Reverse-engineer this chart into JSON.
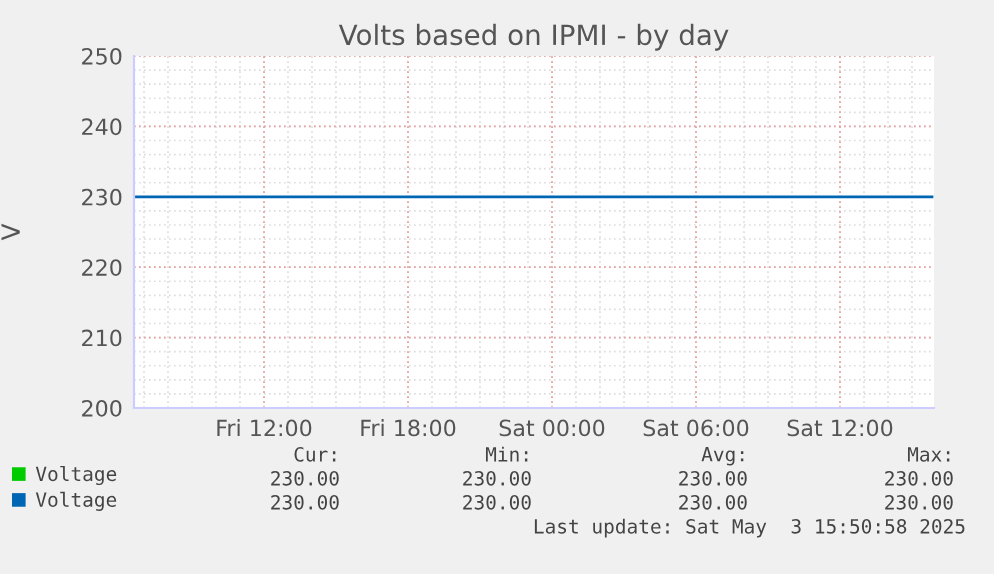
{
  "chart_data": {
    "type": "line",
    "title": "Volts based on IPMI - by day",
    "ylabel": "V",
    "x": [
      "2025-05-02T06:35",
      "2025-05-03T15:50"
    ],
    "series": [
      {
        "name": "Voltage",
        "color": "#00cc00",
        "values": [
          null,
          null
        ]
      },
      {
        "name": "Voltage",
        "color": "#0066b3",
        "values": [
          230,
          230
        ]
      }
    ],
    "xlim": [
      "2025-05-02T06:35",
      "2025-05-03T15:55"
    ],
    "xticks": [
      {
        "value": "2025-05-02T12:00",
        "label": "Fri 12:00"
      },
      {
        "value": "2025-05-02T18:00",
        "label": "Fri 18:00"
      },
      {
        "value": "2025-05-03T00:00",
        "label": "Sat 00:00"
      },
      {
        "value": "2025-05-03T06:00",
        "label": "Sat 06:00"
      },
      {
        "value": "2025-05-03T12:00",
        "label": "Sat 12:00"
      }
    ],
    "ylim": [
      200,
      250
    ],
    "yticks": [
      200,
      210,
      220,
      230,
      240,
      250
    ],
    "grid": true,
    "legend": "bottom left",
    "annotations": [
      "Cur:",
      "Min:",
      "Avg:",
      "Max:",
      "230.00",
      "230.00",
      "230.00",
      "230.00",
      "230.00",
      "230.00",
      "230.00",
      "230.00",
      "Last update: Sat May  3 15:50:58 2025"
    ]
  }
}
